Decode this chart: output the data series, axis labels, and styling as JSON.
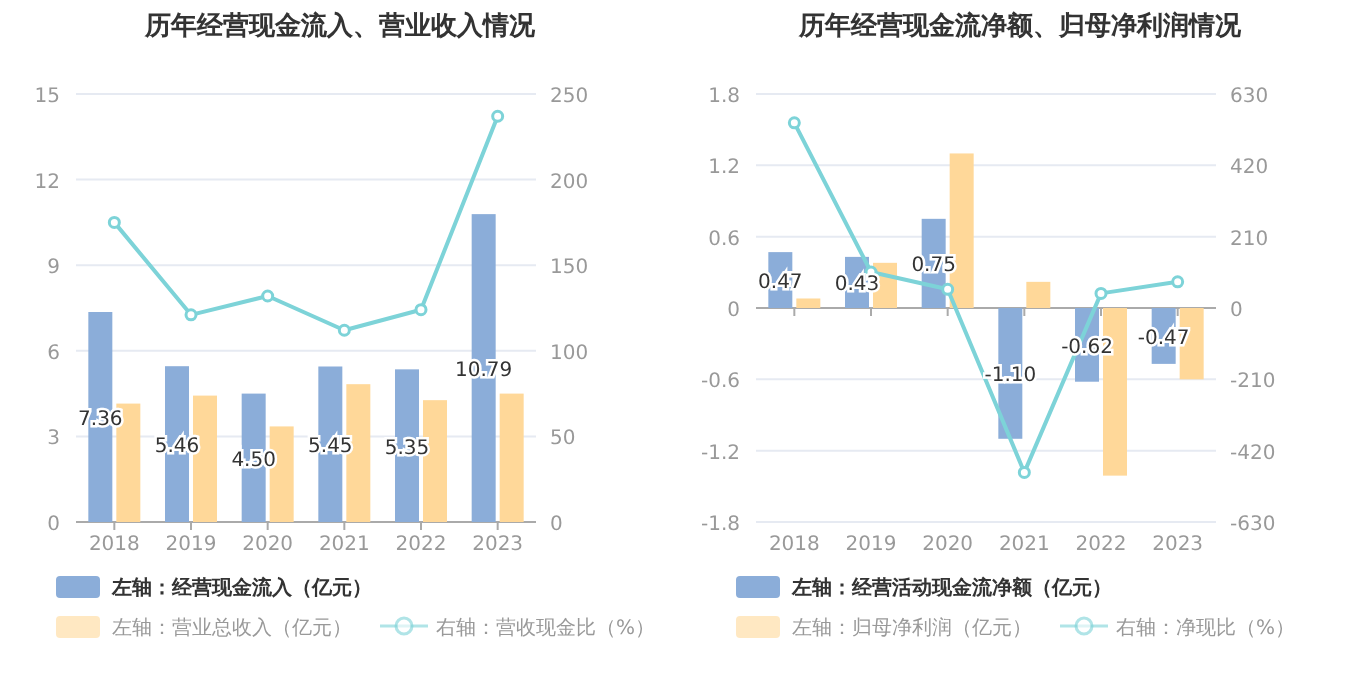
{
  "chart_data": [
    {
      "type": "bar",
      "title": "历年经营现金流入、营业收入情况",
      "categories": [
        "2018",
        "2019",
        "2020",
        "2021",
        "2022",
        "2023"
      ],
      "ylim": [
        0,
        15
      ],
      "yticks": [
        0,
        3,
        6,
        9,
        12,
        15
      ],
      "y2lim": [
        0,
        250
      ],
      "y2ticks": [
        0,
        50,
        100,
        150,
        200,
        250
      ],
      "grid": "y",
      "legend": "bottom",
      "series": [
        {
          "name": "左轴：经营现金流入（亿元）",
          "color": "#8badd9",
          "values": [
            7.36,
            5.46,
            4.5,
            5.45,
            5.35,
            10.79
          ],
          "value_labels": [
            "7.36",
            "5.46",
            "4.50",
            "5.45",
            "5.35",
            "10.79"
          ]
        },
        {
          "name": "左轴：营业总收入（亿元）",
          "color": "#ffd899",
          "values": [
            4.15,
            4.43,
            3.35,
            4.83,
            4.27,
            4.5
          ]
        },
        {
          "name": "右轴：营收现金比（%）",
          "type": "line",
          "axis": "y2",
          "color": "#7dd3d8",
          "marker": "circle",
          "values": [
            175,
            121,
            132,
            112,
            124,
            237
          ]
        }
      ]
    },
    {
      "type": "bar",
      "title": "历年经营现金流净额、归母净利润情况",
      "categories": [
        "2018",
        "2019",
        "2020",
        "2021",
        "2022",
        "2023"
      ],
      "ylim": [
        -1.8,
        1.8
      ],
      "yticks": [
        -1.8,
        -1.2,
        -0.6,
        0,
        0.6,
        1.2,
        1.8
      ],
      "y2lim": [
        -630,
        630
      ],
      "y2ticks": [
        -630,
        -420,
        -210,
        0,
        210,
        420,
        630
      ],
      "grid": "y",
      "legend": "bottom",
      "series": [
        {
          "name": "左轴：经营活动现金流净额（亿元）",
          "color": "#8badd9",
          "values": [
            0.47,
            0.43,
            0.75,
            -1.1,
            -0.62,
            -0.47
          ],
          "value_labels": [
            "0.47",
            "0.43",
            "0.75",
            "-1.10",
            "-0.62",
            "-0.47"
          ]
        },
        {
          "name": "左轴：归母净利润（亿元）",
          "color": "#ffd899",
          "values": [
            0.08,
            0.38,
            1.3,
            0.22,
            -1.41,
            -0.6
          ]
        },
        {
          "name": "右轴：净现比（%）",
          "type": "line",
          "axis": "y2",
          "color": "#7dd3d8",
          "marker": "circle",
          "values": [
            545,
            106,
            55,
            -484,
            43,
            77
          ]
        }
      ]
    }
  ]
}
